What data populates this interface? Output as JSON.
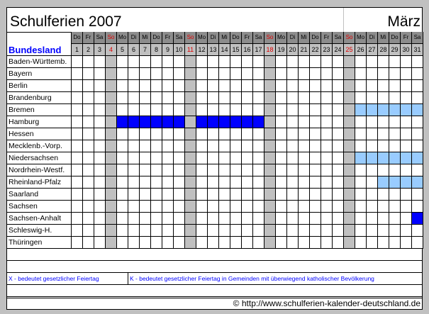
{
  "title": "Schulferien 2007",
  "month": "März",
  "header_label": "Bundesland",
  "weekdays": [
    "Do",
    "Fr",
    "Sa",
    "So",
    "Mo",
    "Di",
    "Mi",
    "Do",
    "Fr",
    "Sa",
    "So",
    "Mo",
    "Di",
    "Mi",
    "Do",
    "Fr",
    "Sa",
    "So",
    "Mo",
    "Di",
    "Mi",
    "Do",
    "Fr",
    "Sa",
    "So",
    "Mo",
    "Di",
    "Mi",
    "Do",
    "Fr",
    "Sa"
  ],
  "days": [
    "1",
    "2",
    "3",
    "4",
    "5",
    "6",
    "7",
    "8",
    "9",
    "10",
    "11",
    "12",
    "13",
    "14",
    "15",
    "16",
    "17",
    "18",
    "19",
    "20",
    "21",
    "22",
    "23",
    "24",
    "25",
    "26",
    "27",
    "28",
    "29",
    "30",
    "31"
  ],
  "sundays": [
    4,
    11,
    18,
    25
  ],
  "colors": {
    "holiday": "#0000ff",
    "holiday_light": "#99ccff",
    "sunday": "#c0c0c0",
    "holiday_text": "#e00000"
  },
  "states": [
    {
      "name": "Baden-Württemb.",
      "holidays": []
    },
    {
      "name": "Bayern",
      "holidays": []
    },
    {
      "name": "Berlin",
      "holidays": []
    },
    {
      "name": "Brandenburg",
      "holidays": []
    },
    {
      "name": "Bremen",
      "holidays": [
        {
          "from": 26,
          "to": 31,
          "style": "light"
        }
      ]
    },
    {
      "name": "Hamburg",
      "holidays": [
        {
          "from": 5,
          "to": 10,
          "style": "dark"
        },
        {
          "from": 12,
          "to": 17,
          "style": "dark"
        }
      ]
    },
    {
      "name": "Hessen",
      "holidays": []
    },
    {
      "name": "Mecklenb.-Vorp.",
      "holidays": []
    },
    {
      "name": "Niedersachsen",
      "holidays": [
        {
          "from": 26,
          "to": 31,
          "style": "light"
        }
      ]
    },
    {
      "name": "Nordrhein-Westf.",
      "holidays": []
    },
    {
      "name": "Rheinland-Pfalz",
      "holidays": [
        {
          "from": 28,
          "to": 31,
          "style": "light"
        }
      ]
    },
    {
      "name": "Saarland",
      "holidays": []
    },
    {
      "name": "Sachsen",
      "holidays": []
    },
    {
      "name": "Sachsen-Anhalt",
      "holidays": [
        {
          "from": 31,
          "to": 31,
          "style": "dark"
        }
      ]
    },
    {
      "name": "Schleswig-H.",
      "holidays": []
    },
    {
      "name": "Thüringen",
      "holidays": []
    }
  ],
  "legend": {
    "x": "X - bedeutet gesetzlicher Feiertag",
    "k": "K  - bedeutet gesetzlicher Feiertag in Gemeinden mit überwiegend katholischer Bevölkerung"
  },
  "footer": "© http://www.schulferien-kalender-deutschland.de"
}
